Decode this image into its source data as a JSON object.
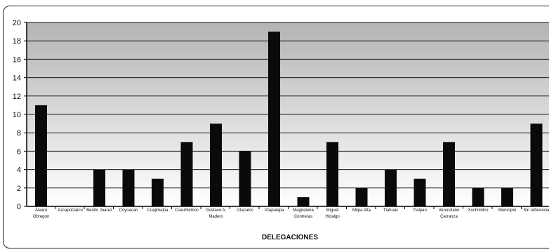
{
  "chart_data": {
    "type": "bar",
    "xlabel": "DELEGACIONES",
    "ylabel": "",
    "ylim": [
      0,
      20
    ],
    "y_ticks": [
      "0",
      "2",
      "4",
      "6",
      "8",
      "10",
      "12",
      "14",
      "16",
      "18",
      "20"
    ],
    "grid": true,
    "categories": [
      "Álvaro Obregon",
      "Azcapotzalco",
      "Benito Juarez",
      "Coyoacan",
      "Cuajimalpa",
      "Cuauhtémoc",
      "Gustavo A. Madero",
      "Iztacalco",
      "Iztapalapa",
      "Magdalena Contreras",
      "Miguel Hidalgo",
      "Milpa Alta",
      "Tlahuac",
      "Tlalpan",
      "Venustiano Carranza",
      "Xochimilco",
      "Municipio",
      "Sin referencia"
    ],
    "category_lines": [
      [
        "Álvaro",
        "Obregon"
      ],
      [
        "Azcapotzalco"
      ],
      [
        "Benito Juarez"
      ],
      [
        "Coyoacan"
      ],
      [
        "Cuajimalpa"
      ],
      [
        "Cuauhtémoc"
      ],
      [
        "Gustavo A.",
        "Madero"
      ],
      [
        "Iztacalco"
      ],
      [
        "Iztapalapa"
      ],
      [
        "Magdalena",
        "Contreras"
      ],
      [
        "Miguel",
        "Hidalgo"
      ],
      [
        "Milpa Alta"
      ],
      [
        "Tlahuac"
      ],
      [
        "Tlalpan"
      ],
      [
        "Venustiano",
        "Carranza"
      ],
      [
        "Xochimilco"
      ],
      [
        "Municipio"
      ],
      [
        "Sin referencia"
      ]
    ],
    "values": [
      11,
      0,
      4,
      4,
      3,
      7,
      9,
      6,
      19,
      1,
      7,
      2,
      4,
      3,
      7,
      2,
      2,
      9
    ],
    "colors": {
      "bar": "#0a0a0a",
      "plot_top": "#b4b4b4",
      "plot_bottom": "#ffffff",
      "grid": "#1a1a1a",
      "axis": "#000000"
    }
  }
}
